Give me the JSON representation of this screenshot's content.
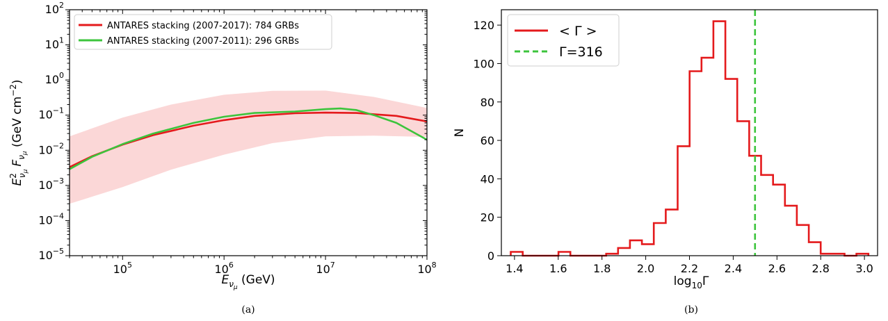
{
  "colors": {
    "red": "#e41a1c",
    "green": "#3cc43c",
    "band": "#fbd7d7"
  },
  "captions": {
    "a": "(a)",
    "b": "(b)"
  },
  "chart_data": [
    {
      "type": "line",
      "xscale": "log",
      "yscale": "log",
      "xlim": [
        30000,
        100000000
      ],
      "ylim": [
        1e-05,
        100
      ],
      "x_tick_labels": [
        {
          "base": "10",
          "exp": "5",
          "value": 100000
        },
        {
          "base": "10",
          "exp": "6",
          "value": 1000000
        },
        {
          "base": "10",
          "exp": "7",
          "value": 10000000
        },
        {
          "base": "10",
          "exp": "8",
          "value": 100000000
        }
      ],
      "y_tick_labels": [
        {
          "base": "10",
          "exp": "2",
          "value": 100
        },
        {
          "base": "10",
          "exp": "1",
          "value": 10
        },
        {
          "base": "10",
          "exp": "0",
          "value": 1
        },
        {
          "base": "10",
          "exp": "−1",
          "value": 0.1
        },
        {
          "base": "10",
          "exp": "−2",
          "value": 0.01
        },
        {
          "base": "10",
          "exp": "−3",
          "value": 0.001
        },
        {
          "base": "10",
          "exp": "−4",
          "value": 0.0001
        },
        {
          "base": "10",
          "exp": "−5",
          "value": 1e-05
        }
      ],
      "xlabel": {
        "main": "E",
        "sub": "ν",
        "subsub": "μ",
        "unit": " (GeV)"
      },
      "ylabel": {
        "e": "E",
        "e_sup": "2",
        "e_sub": "ν",
        "e_subsub": "μ",
        "f": "F",
        "f_sub": "ν",
        "f_subsub": "μ",
        "unit_pre": " (GeV cm",
        "unit_exp": "−2",
        "unit_post": ")"
      },
      "legend_position": "upper-left",
      "series": [
        {
          "name": "ANTARES stacking (2007-2017): 784 GRBs",
          "color": "#e41a1c",
          "x": [
            30000,
            50000,
            100000,
            200000,
            500000,
            1000000,
            2000000,
            5000000,
            10000000,
            20000000,
            50000000,
            100000000
          ],
          "y": [
            0.0033,
            0.0068,
            0.0145,
            0.027,
            0.05,
            0.072,
            0.095,
            0.113,
            0.118,
            0.115,
            0.095,
            0.066
          ]
        },
        {
          "name": "ANTARES stacking (2007-2011): 296 GRBs",
          "color": "#3cc43c",
          "x": [
            30000,
            50000,
            100000,
            200000,
            500000,
            1000000,
            2000000,
            5000000,
            10000000,
            14000000,
            20000000,
            30000000,
            50000000,
            100000000
          ],
          "y": [
            0.0029,
            0.0065,
            0.015,
            0.03,
            0.06,
            0.09,
            0.115,
            0.127,
            0.148,
            0.155,
            0.14,
            0.1,
            0.06,
            0.02
          ]
        }
      ],
      "band": {
        "x": [
          30000,
          100000,
          300000,
          1000000,
          3000000,
          10000000,
          30000000,
          100000000
        ],
        "upper": [
          0.025,
          0.085,
          0.2,
          0.38,
          0.49,
          0.5,
          0.33,
          0.16
        ],
        "lower": [
          0.0003,
          0.0009,
          0.0028,
          0.0075,
          0.016,
          0.025,
          0.026,
          0.024
        ]
      }
    },
    {
      "type": "histogram",
      "xlim": [
        1.34,
        3.06
      ],
      "ylim": [
        0,
        128
      ],
      "x_ticks": [
        "1.4",
        "1.6",
        "1.8",
        "2.0",
        "2.2",
        "2.4",
        "2.6",
        "2.8",
        "3.0"
      ],
      "y_ticks": [
        "0",
        "20",
        "40",
        "60",
        "80",
        "100",
        "120"
      ],
      "xlabel": {
        "main": "log",
        "sub": "10",
        "tail": "Γ"
      },
      "ylabel": "N",
      "legend_position": "upper-left",
      "series": [
        {
          "name": "< Γ >",
          "color": "#e41a1c",
          "bin_edges": [
            1.383,
            1.4375,
            1.492,
            1.5465,
            1.601,
            1.6555,
            1.71,
            1.7645,
            1.819,
            1.8735,
            1.928,
            1.9825,
            2.037,
            2.0915,
            2.146,
            2.2005,
            2.255,
            2.3095,
            2.364,
            2.4185,
            2.473,
            2.5275,
            2.582,
            2.6365,
            2.691,
            2.7455,
            2.8,
            2.8545,
            2.909,
            2.9635,
            3.018
          ],
          "counts": [
            2,
            0,
            0,
            0,
            2,
            0,
            0,
            0,
            1,
            4,
            8,
            6,
            17,
            24,
            57,
            96,
            103,
            122,
            92,
            70,
            52,
            42,
            37,
            26,
            16,
            7,
            1,
            1,
            0,
            1
          ]
        },
        {
          "name": "Γ=316",
          "color": "#3cc43c",
          "style": "dashed",
          "x_value": 2.4997
        }
      ]
    }
  ]
}
